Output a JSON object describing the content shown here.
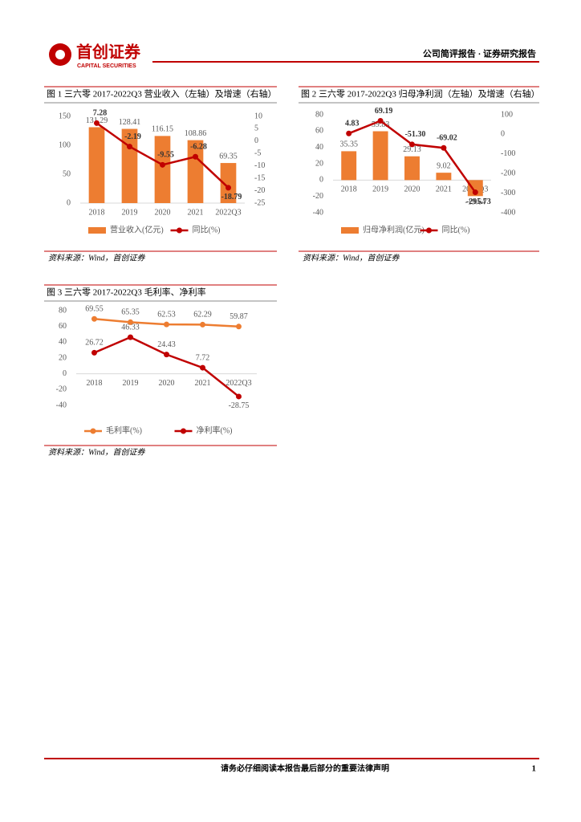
{
  "header": {
    "logo": "首创证券",
    "logo_en": "CAPITAL SECURITIES",
    "right": "公司简评报告 · 证券研究报告"
  },
  "chart_data": [
    {
      "type": "combo",
      "title": "图 1  三六零 2017-2022Q3 营业收入（左轴）及增速（右轴）",
      "source": "资料来源：Wind，首创证券",
      "categories": [
        "2018",
        "2019",
        "2020",
        "2021",
        "2022Q3"
      ],
      "series": [
        {
          "name": "营业收入(亿元)",
          "type": "bar",
          "color": "#ed7d31",
          "values": [
            131.29,
            128.41,
            116.15,
            108.86,
            69.35
          ]
        },
        {
          "name": "同比(%)",
          "type": "line",
          "axis": "y2",
          "color": "#c00000",
          "values": [
            7.28,
            -2.19,
            -9.55,
            -6.28,
            -18.79
          ]
        }
      ],
      "ylim": [
        0,
        150
      ],
      "yticks": [
        0,
        50,
        100,
        150
      ],
      "y2lim": [
        -25,
        10
      ],
      "y2ticks": [
        10,
        5,
        0,
        -5,
        -10,
        -15,
        -20,
        -25
      ]
    },
    {
      "type": "combo",
      "title": "图 2 三六零 2017-2022Q3 归母净利润（左轴）及增速（右轴）",
      "source": "资料来源：Wind，首创证券",
      "categories": [
        "2018",
        "2019",
        "2020",
        "2021",
        "2022Q3"
      ],
      "series": [
        {
          "name": "归母净利润(亿元)",
          "type": "bar",
          "color": "#ed7d31",
          "values": [
            35.35,
            59.83,
            29.13,
            9.02,
            -19.64
          ]
        },
        {
          "name": "同比(%)",
          "type": "line",
          "axis": "y2",
          "color": "#c00000",
          "values": [
            4.83,
            69.19,
            -51.3,
            -69.02,
            -295.73
          ],
          "value_labels": [
            "4.83",
            "69.19",
            "-51.30",
            "-69.02",
            "-295.73"
          ]
        }
      ],
      "ylim": [
        -40,
        80
      ],
      "yticks": [
        -40,
        -20,
        0,
        20,
        40,
        60,
        80
      ],
      "y2lim": [
        -400,
        100
      ],
      "y2ticks": [
        100,
        0,
        -100,
        -200,
        -300,
        -400
      ]
    },
    {
      "type": "line",
      "title": "图 3 三六零 2017-2022Q3 毛利率、净利率",
      "source": "资料来源：Wind，首创证券",
      "categories": [
        "2018",
        "2019",
        "2020",
        "2021",
        "2022Q3"
      ],
      "series": [
        {
          "name": "毛利率(%)",
          "type": "line",
          "color": "#ed7d31",
          "values": [
            69.55,
            65.35,
            62.53,
            62.29,
            59.87
          ]
        },
        {
          "name": "净利率(%)",
          "type": "line",
          "color": "#c00000",
          "values": [
            26.72,
            46.33,
            24.43,
            7.72,
            -28.75
          ]
        }
      ],
      "ylim": [
        -40,
        80
      ],
      "yticks": [
        -40,
        -20,
        0,
        20,
        40,
        60,
        80
      ]
    }
  ],
  "footer": {
    "notice": "请务必仔细阅读本报告最后部分的重要法律声明",
    "page": "1"
  }
}
